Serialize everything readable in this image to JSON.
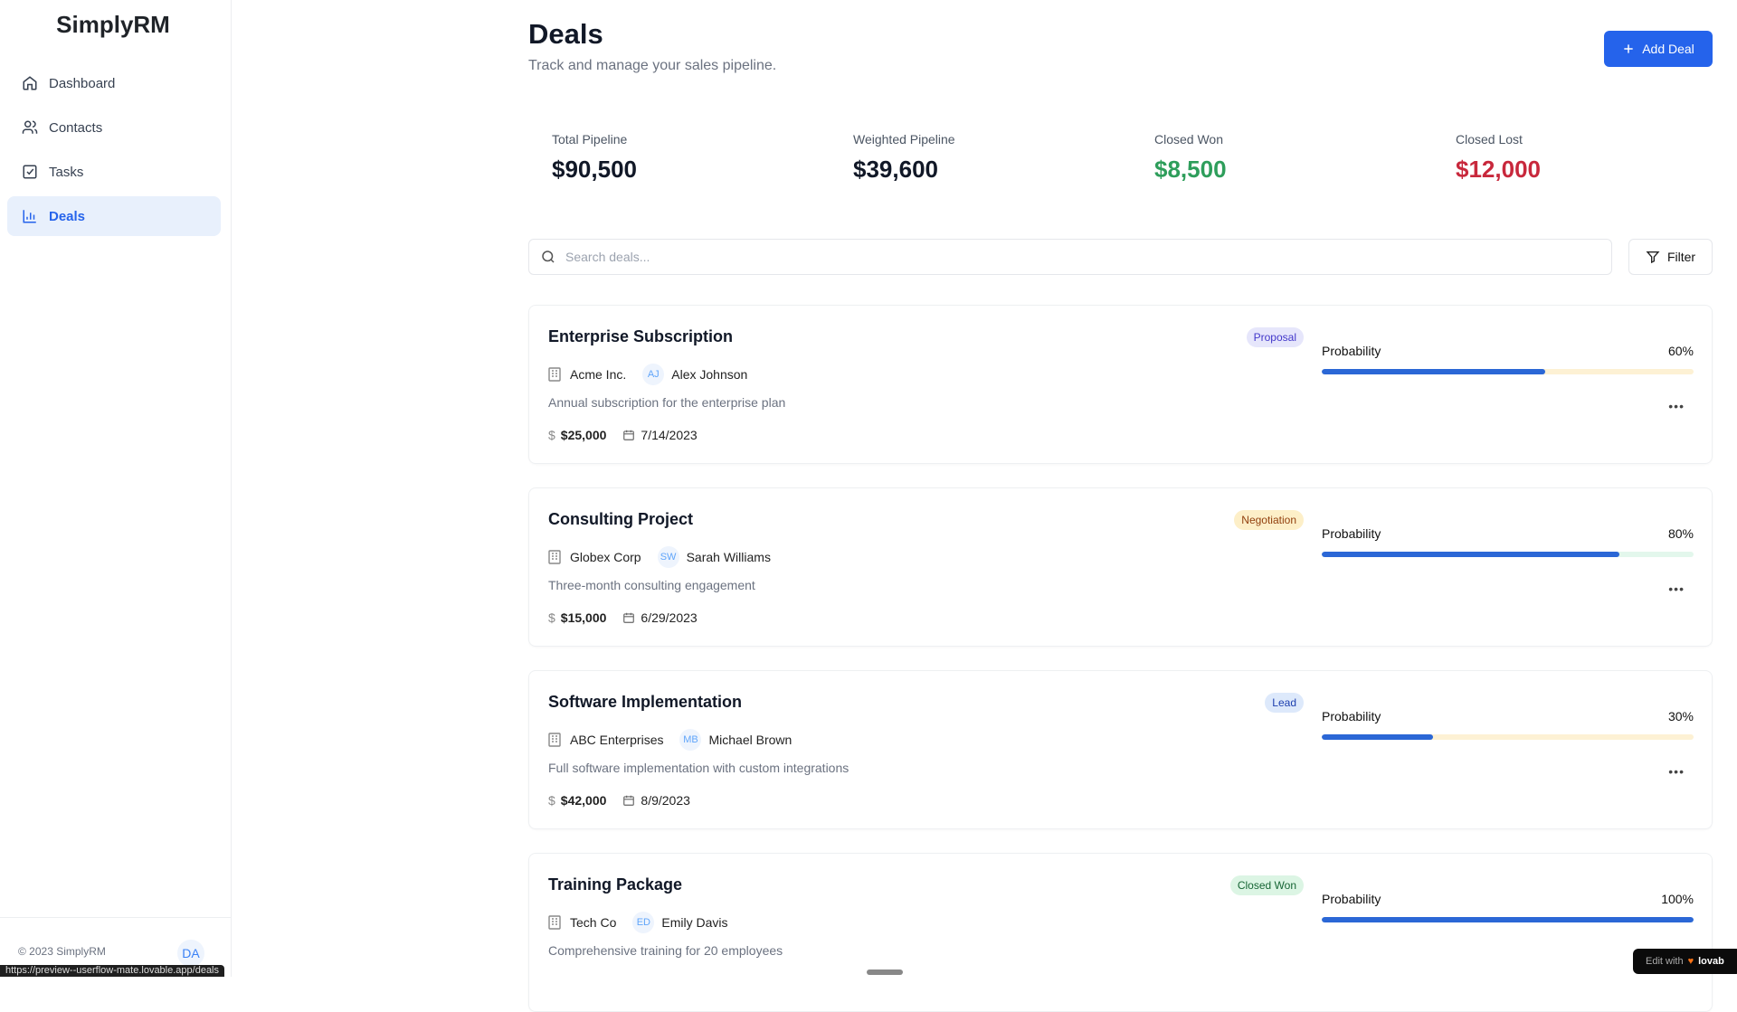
{
  "app": {
    "name": "SimplyRM",
    "footer": "© 2023 SimplyRM",
    "user_initials": "DA",
    "status_url": "https://preview--userflow-mate.lovable.app/deals",
    "edit_badge": "Edit with",
    "edit_brand": "lovab"
  },
  "sidebar": {
    "items": [
      {
        "label": "Dashboard",
        "icon": "home-icon"
      },
      {
        "label": "Contacts",
        "icon": "users-icon"
      },
      {
        "label": "Tasks",
        "icon": "check-square-icon"
      },
      {
        "label": "Deals",
        "icon": "bar-chart-icon",
        "active": true
      }
    ]
  },
  "header": {
    "title": "Deals",
    "subtitle": "Track and manage your sales pipeline.",
    "add_label": "Add Deal"
  },
  "stats": [
    {
      "label": "Total Pipeline",
      "value": "$90,500",
      "color": "#111827"
    },
    {
      "label": "Weighted Pipeline",
      "value": "$39,600",
      "color": "#111827"
    },
    {
      "label": "Closed Won",
      "value": "$8,500",
      "color": "#2e9e5b"
    },
    {
      "label": "Closed Lost",
      "value": "$12,000",
      "color": "#c8283c"
    }
  ],
  "search": {
    "placeholder": "Search deals...",
    "filter_label": "Filter"
  },
  "deals": [
    {
      "title": "Enterprise Subscription",
      "stage": "Proposal",
      "stage_bg": "#e6e6fb",
      "stage_fg": "#4338ca",
      "company": "Acme Inc.",
      "initials": "AJ",
      "contact": "Alex Johnson",
      "description": "Annual subscription for the enterprise plan",
      "amount": "$25,000",
      "date": "7/14/2023",
      "probability_label": "Probability",
      "probability": 60,
      "probability_text": "60%",
      "track": "#fdf1d4"
    },
    {
      "title": "Consulting Project",
      "stage": "Negotiation",
      "stage_bg": "#fdefc8",
      "stage_fg": "#92400e",
      "company": "Globex Corp",
      "initials": "SW",
      "contact": "Sarah Williams",
      "description": "Three-month consulting engagement",
      "amount": "$15,000",
      "date": "6/29/2023",
      "probability_label": "Probability",
      "probability": 80,
      "probability_text": "80%",
      "track": "#e3f7ec"
    },
    {
      "title": "Software Implementation",
      "stage": "Lead",
      "stage_bg": "#dde9fb",
      "stage_fg": "#1e40af",
      "company": "ABC Enterprises",
      "initials": "MB",
      "contact": "Michael Brown",
      "description": "Full software implementation with custom integrations",
      "amount": "$42,000",
      "date": "8/9/2023",
      "probability_label": "Probability",
      "probability": 30,
      "probability_text": "30%",
      "track": "#fdf1d4"
    },
    {
      "title": "Training Package",
      "stage": "Closed Won",
      "stage_bg": "#dcf5e4",
      "stage_fg": "#166534",
      "company": "Tech Co",
      "initials": "ED",
      "contact": "Emily Davis",
      "description": "Comprehensive training for 20 employees",
      "amount": "",
      "date": "",
      "probability_label": "Probability",
      "probability": 100,
      "probability_text": "100%",
      "track": "#e3f7ec"
    }
  ]
}
